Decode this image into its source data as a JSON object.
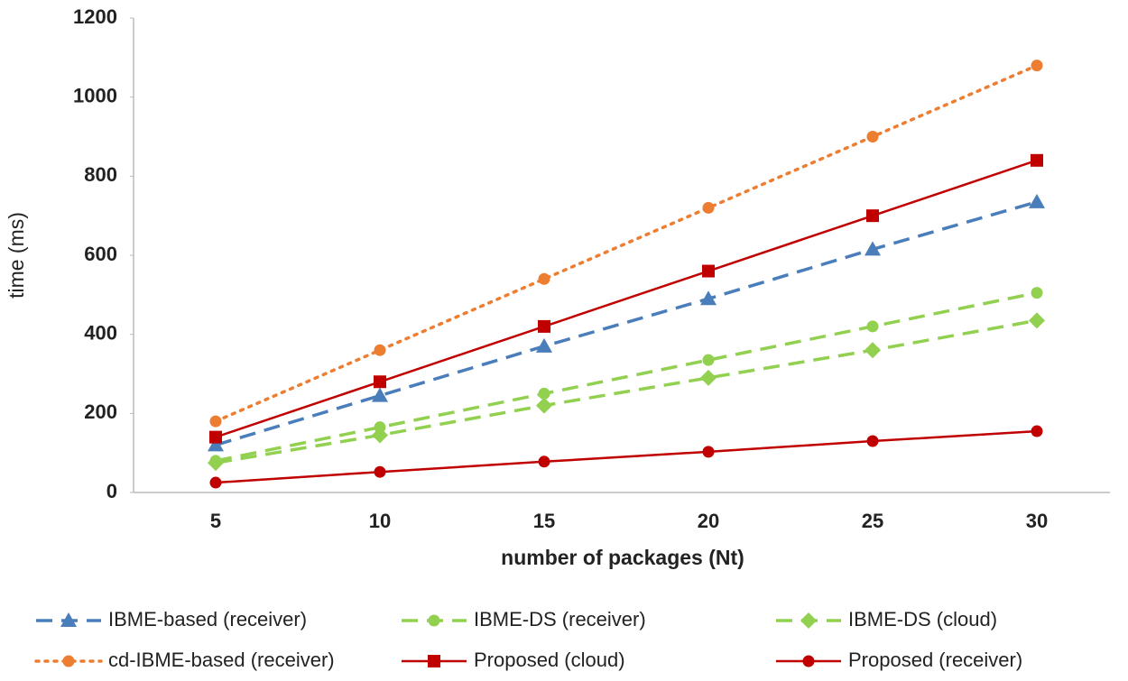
{
  "chart_data": {
    "type": "line",
    "x_label": "number of packages (Nt)",
    "y_label": "time (ms)",
    "categories": [
      "5",
      "10",
      "15",
      "20",
      "25",
      "30"
    ],
    "ylim": [
      0,
      1200
    ],
    "yticks": [
      0,
      200,
      400,
      600,
      800,
      1000,
      1200
    ],
    "grid": false,
    "legend": "bottom",
    "series": [
      {
        "name": "IBME-based (receiver)",
        "color": "#4a7ebb",
        "marker": "triangle",
        "dash": "dashed",
        "values": [
          120,
          245,
          370,
          490,
          615,
          735
        ]
      },
      {
        "name": "IBME-DS (receiver)",
        "color": "#92d050",
        "marker": "circle",
        "dash": "dashed",
        "values": [
          80,
          165,
          250,
          335,
          420,
          505
        ]
      },
      {
        "name": "IBME-DS (cloud)",
        "color": "#92d050",
        "marker": "diamond",
        "dash": "dashed",
        "values": [
          75,
          145,
          220,
          290,
          360,
          435
        ]
      },
      {
        "name": "cd-IBME-based (receiver)",
        "color": "#ed7d31",
        "marker": "circle",
        "dash": "dotted",
        "values": [
          180,
          360,
          540,
          720,
          900,
          1080
        ]
      },
      {
        "name": "Proposed (cloud)",
        "color": "#c00000",
        "marker": "square",
        "dash": "solid",
        "values": [
          140,
          280,
          420,
          560,
          700,
          840
        ]
      },
      {
        "name": "Proposed (receiver)",
        "color": "#c00000",
        "marker": "circle",
        "dash": "solid",
        "values": [
          25,
          52,
          78,
          103,
          130,
          155
        ]
      }
    ]
  }
}
